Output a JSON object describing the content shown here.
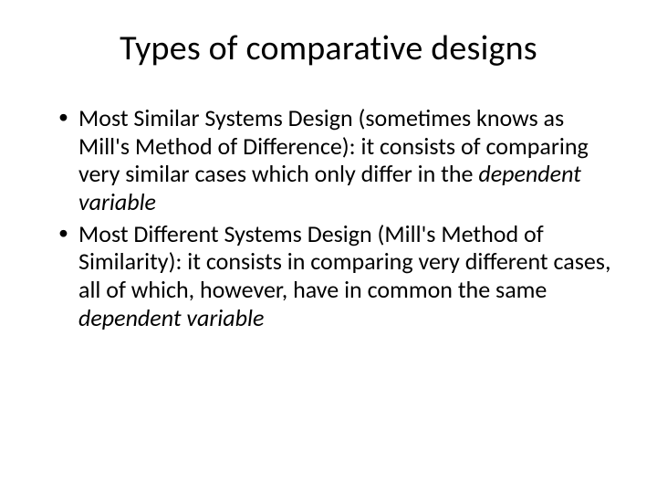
{
  "slide": {
    "title": "Types of comparative designs",
    "bullets": [
      {
        "pre": "Most Similar Systems Design (sometimes knows as Mill's Method of Difference): it consists of comparing very similar cases which only differ in the ",
        "em": "dependent variable",
        "post": ""
      },
      {
        "pre": "Most Different Systems Design (Mill's Method of Similarity): it consists in comparing very different cases, all of which, however, have in common the same ",
        "em": "dependent variable",
        "post": ""
      }
    ]
  },
  "style": {
    "background_color": "#ffffff",
    "text_color": "#000000",
    "title_fontsize": 38,
    "body_fontsize": 26,
    "font_family": "Calibri"
  }
}
